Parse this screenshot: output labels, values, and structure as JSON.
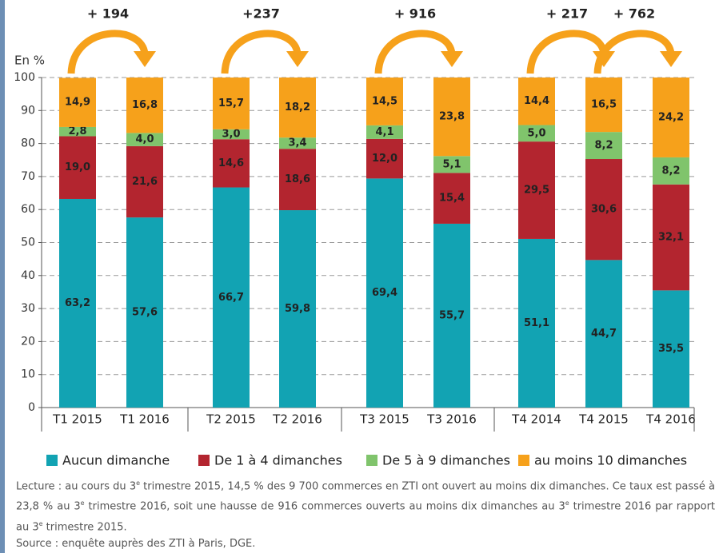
{
  "chart_data": {
    "type": "stacked_bar",
    "y_label": "En %",
    "categories": [
      "T1 2015",
      "T1 2016",
      "T2 2015",
      "T2 2016",
      "T3 2015",
      "T3 2016",
      "T4 2014",
      "T4 2015",
      "T4 2016"
    ],
    "series": [
      {
        "name": "Aucun dimanche",
        "color": "#12a3b3",
        "values": [
          63.2,
          57.6,
          66.7,
          59.8,
          69.4,
          55.7,
          51.1,
          44.7,
          35.5
        ],
        "value_labels": [
          "63,2",
          "57,6",
          "66,7",
          "59,8",
          "69,4",
          "55,7",
          "51,1",
          "44,7",
          "35,5"
        ]
      },
      {
        "name": "De 1 à 4 dimanches",
        "color": "#b3252f",
        "values": [
          19.0,
          21.6,
          14.6,
          18.6,
          12.0,
          15.4,
          29.5,
          30.6,
          32.1
        ],
        "value_labels": [
          "19,0",
          "21,6",
          "14,6",
          "18,6",
          "12,0",
          "15,4",
          "29,5",
          "30,6",
          "32,1"
        ]
      },
      {
        "name": "De 5 à 9 dimanches",
        "color": "#80c46c",
        "values": [
          2.8,
          4.0,
          3.0,
          3.4,
          4.1,
          5.1,
          5.0,
          8.2,
          8.2
        ],
        "value_labels": [
          "2,8",
          "4,0",
          "3,0",
          "3,4",
          "4,1",
          "5,1",
          "5,0",
          "8,2",
          "8,2"
        ]
      },
      {
        "name": "au moins 10 dimanches",
        "color": "#f6a11b",
        "values": [
          14.9,
          16.8,
          15.7,
          18.2,
          14.5,
          23.8,
          14.4,
          16.5,
          24.2
        ],
        "value_labels": [
          "14,9",
          "16,8",
          "15,7",
          "18,2",
          "14,5",
          "23,8",
          "14,4",
          "16,5",
          "24,2"
        ]
      }
    ],
    "annotations": [
      "+ 194",
      "+237",
      "+ 916",
      "+ 217",
      "+ 762"
    ],
    "ylim": [
      0,
      100
    ],
    "yticks": [
      0,
      10,
      20,
      30,
      40,
      50,
      60,
      70,
      80,
      90,
      100
    ],
    "grid": true,
    "legend": "bottom"
  },
  "note": [
    "Lecture : au cours du 3",
    "e",
    " trimestre 2015, 14,5 % des 9 700 commerces en ZTI ont ouvert au moins dix dimanches. Ce taux est passé à 23,8 % au 3",
    "e",
    " trimestre 2016, soit une hausse de 916 commerces ouverts au moins dix dimanches au 3",
    "e",
    " trimestre 2016 par rapport au 3",
    "e",
    " trimestre 2015."
  ],
  "source": "Source : enquête auprès des ZTI à Paris, DGE."
}
